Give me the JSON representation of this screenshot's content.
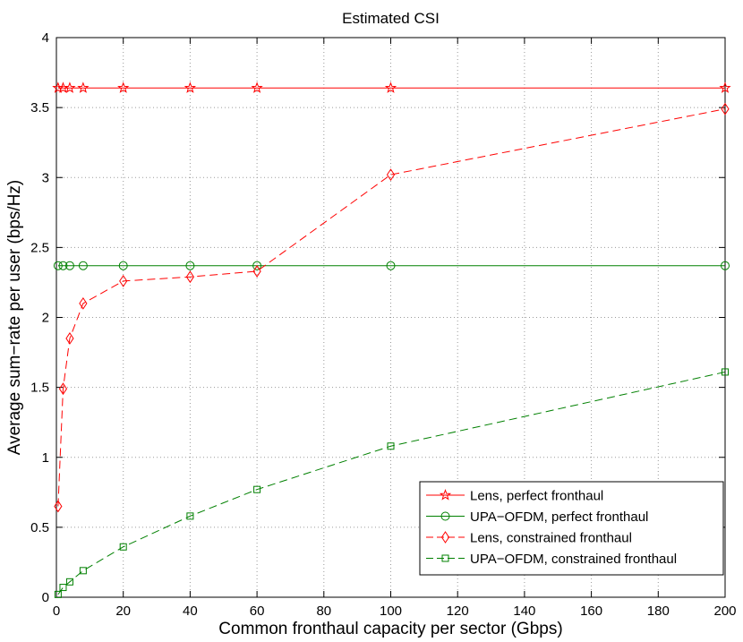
{
  "chart_data": {
    "type": "line",
    "title": "Estimated CSI",
    "xlabel": "Common fronthaul capacity per sector (Gbps)",
    "ylabel": "Average sum−rate per user (bps/Hz)",
    "xlim": [
      0,
      200
    ],
    "ylim": [
      0,
      4
    ],
    "xticks": [
      0,
      20,
      40,
      60,
      80,
      100,
      120,
      140,
      160,
      180,
      200
    ],
    "yticks": [
      0,
      0.5,
      1,
      1.5,
      2,
      2.5,
      3,
      3.5,
      4
    ],
    "xtick_labels": [
      "0",
      "20",
      "40",
      "60",
      "80",
      "100",
      "120",
      "140",
      "160",
      "180",
      "200"
    ],
    "ytick_labels": [
      "0",
      "0.5",
      "1",
      "1.5",
      "2",
      "2.5",
      "3",
      "3.5",
      "4"
    ],
    "grid": true,
    "legend_position": "bottom-right",
    "series": [
      {
        "name": "Lens, perfect fronthaul",
        "color": "#ff0000",
        "line_style": "solid",
        "marker": "star",
        "x": [
          0.5,
          2,
          4,
          8,
          20,
          40,
          60,
          100,
          200
        ],
        "y": [
          3.64,
          3.64,
          3.64,
          3.64,
          3.64,
          3.64,
          3.64,
          3.64,
          3.64
        ]
      },
      {
        "name": "UPA−OFDM, perfect fronthaul",
        "color": "#008000",
        "line_style": "solid",
        "marker": "circle",
        "x": [
          0.5,
          2,
          4,
          8,
          20,
          40,
          60,
          100,
          200
        ],
        "y": [
          2.37,
          2.37,
          2.37,
          2.37,
          2.37,
          2.37,
          2.37,
          2.37,
          2.37
        ]
      },
      {
        "name": "Lens, constrained fronthaul",
        "color": "#ff0000",
        "line_style": "dashed",
        "marker": "diamond",
        "x": [
          0.5,
          2,
          4,
          8,
          20,
          40,
          60,
          100,
          200
        ],
        "y": [
          0.65,
          1.49,
          1.85,
          2.1,
          2.26,
          2.29,
          2.33,
          3.02,
          3.49
        ]
      },
      {
        "name": "UPA−OFDM, constrained fronthaul",
        "color": "#008000",
        "line_style": "dashed",
        "marker": "square",
        "x": [
          0.5,
          2,
          4,
          8,
          20,
          40,
          60,
          100,
          200
        ],
        "y": [
          0.02,
          0.07,
          0.11,
          0.19,
          0.36,
          0.58,
          0.77,
          1.08,
          1.61
        ]
      }
    ]
  }
}
